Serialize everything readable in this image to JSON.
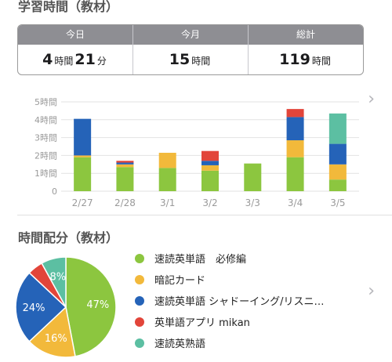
{
  "summary_title": "学習時間（教材）",
  "summary": {
    "today": {
      "label": "今日",
      "h": "4",
      "h_unit": "時間",
      "m": "21",
      "m_unit": "分"
    },
    "month": {
      "label": "今月",
      "h": "15",
      "h_unit": "時間"
    },
    "total": {
      "label": "総計",
      "h": "119",
      "h_unit": "時間"
    }
  },
  "colors": {
    "green": "#8cc63f",
    "yellow": "#f2b93b",
    "blue": "#2563b8",
    "red": "#e2453a",
    "teal": "#5cbfa2"
  },
  "chart_data": {
    "type": "bar",
    "stacked": true,
    "categories": [
      "2/27",
      "2/28",
      "3/1",
      "3/2",
      "3/3",
      "3/4",
      "3/5"
    ],
    "y_tick_labels": [
      "0",
      "1時間",
      "2時間",
      "3時間",
      "4時間",
      "5時間"
    ],
    "ylim": [
      0,
      5
    ],
    "grid": true,
    "series": [
      {
        "color": "#8cc63f",
        "values": [
          1.9,
          1.35,
          1.3,
          1.15,
          1.55,
          1.9,
          0.65
        ]
      },
      {
        "color": "#f2b93b",
        "values": [
          0.1,
          0.15,
          0.85,
          0.3,
          0,
          0.95,
          0.85
        ]
      },
      {
        "color": "#2563b8",
        "values": [
          2.05,
          0.1,
          0,
          0.25,
          0,
          1.3,
          1.15
        ]
      },
      {
        "color": "#e2453a",
        "values": [
          0,
          0.1,
          0,
          0.55,
          0,
          0.45,
          0
        ]
      },
      {
        "color": "#5cbfa2",
        "values": [
          0,
          0,
          0,
          0,
          0,
          0,
          1.7
        ]
      }
    ]
  },
  "distribution_title": "時間配分（教材）",
  "pie_data": {
    "type": "pie",
    "slices": [
      {
        "value": 47,
        "label": "47%",
        "color": "#8cc63f"
      },
      {
        "value": 16,
        "label": "16%",
        "color": "#f2b93b"
      },
      {
        "value": 24,
        "label": "24%",
        "color": "#2563b8"
      },
      {
        "value": 5,
        "label": "",
        "color": "#e2453a"
      },
      {
        "value": 8,
        "label": "8%",
        "color": "#5cbfa2"
      }
    ]
  },
  "legend": [
    {
      "name": "速読英単語　必修編",
      "color": "#8cc63f"
    },
    {
      "name": "暗記カード",
      "color": "#f2b93b"
    },
    {
      "name": "速読英単語 シャドーイング/リスニ…",
      "color": "#2563b8"
    },
    {
      "name": "英単語アプリ mikan",
      "color": "#e2453a"
    },
    {
      "name": "速読英熟語",
      "color": "#5cbfa2"
    }
  ],
  "chevron": "›"
}
